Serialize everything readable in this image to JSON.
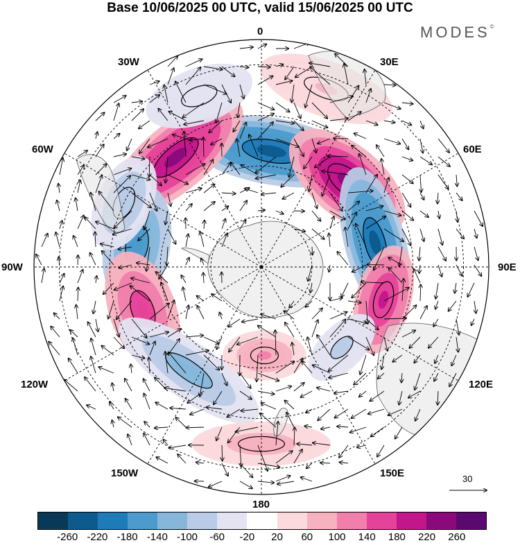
{
  "title": "Base 10/06/2025 00 UTC, valid 15/06/2025 00 UTC",
  "brand": {
    "name": "MODES",
    "mark": "©"
  },
  "longitude_labels": {
    "0": "0",
    "30E": "30E",
    "60E": "60E",
    "90E": "90E",
    "120E": "120E",
    "150E": "150E",
    "180": "180",
    "150W": "150W",
    "120W": "120W",
    "90W": "90W",
    "60W": "60W",
    "30W": "30W"
  },
  "reference_vector": {
    "value": "30"
  },
  "colorbar": {
    "colors": [
      "#083a57",
      "#0d5a8c",
      "#1f7bb8",
      "#4c9bcc",
      "#86b7db",
      "#b9cbe6",
      "#e3e3f1",
      "#ffffff",
      "#fbd9dc",
      "#f7b2c0",
      "#f07fac",
      "#e5439a",
      "#c3168b",
      "#8a0a7c",
      "#5a0a6e"
    ],
    "tick_labels": [
      "-260",
      "-220",
      "-180",
      "-140",
      "-100",
      "-60",
      "-20",
      "20",
      "60",
      "100",
      "140",
      "180",
      "220",
      "260"
    ]
  },
  "anomaly_features": [
    {
      "sign": "negative",
      "value": -240,
      "lon": 5,
      "colat": 46,
      "rlon": 32,
      "rcolat": 12,
      "rot": 10
    },
    {
      "sign": "positive",
      "value": 230,
      "lon": -38,
      "colat": 55,
      "rlon": 30,
      "rcolat": 12,
      "rot": -40
    },
    {
      "sign": "positive",
      "value": 240,
      "lon": 45,
      "colat": 48,
      "rlon": 25,
      "rcolat": 13,
      "rot": 40
    },
    {
      "sign": "negative",
      "value": -240,
      "lon": 78,
      "colat": 46,
      "rlon": 28,
      "rcolat": 11,
      "rot": 75
    },
    {
      "sign": "positive",
      "value": 200,
      "lon": 105,
      "colat": 50,
      "rlon": 20,
      "rcolat": 10,
      "rot": 105
    },
    {
      "sign": "negative",
      "value": -180,
      "lon": -80,
      "colat": 50,
      "rlon": 22,
      "rcolat": 12,
      "rot": -80
    },
    {
      "sign": "negative",
      "value": -100,
      "lon": -65,
      "colat": 60,
      "rlon": 18,
      "rcolat": 10,
      "rot": -65
    },
    {
      "sign": "positive",
      "value": 160,
      "lon": -110,
      "colat": 50,
      "rlon": 22,
      "rcolat": 12,
      "rot": -110
    },
    {
      "sign": "negative",
      "value": -120,
      "lon": -145,
      "colat": 50,
      "rlon": 30,
      "rcolat": 10,
      "rot": -145
    },
    {
      "sign": "positive",
      "value": 100,
      "lon": 178,
      "colat": 35,
      "rlon": 15,
      "rcolat": 9,
      "rot": 0
    },
    {
      "sign": "positive",
      "value": 80,
      "lon": 180,
      "colat": 70,
      "rlon": 25,
      "rcolat": 8,
      "rot": 0
    },
    {
      "sign": "negative",
      "value": -80,
      "lon": 135,
      "colat": 45,
      "rlon": 15,
      "rcolat": 8,
      "rot": 135
    },
    {
      "sign": "positive",
      "value": 60,
      "lon": 20,
      "colat": 75,
      "rlon": 25,
      "rcolat": 10,
      "rot": 20
    },
    {
      "sign": "negative",
      "value": -60,
      "lon": -20,
      "colat": 72,
      "rlon": 20,
      "rcolat": 10,
      "rot": -20
    }
  ]
}
